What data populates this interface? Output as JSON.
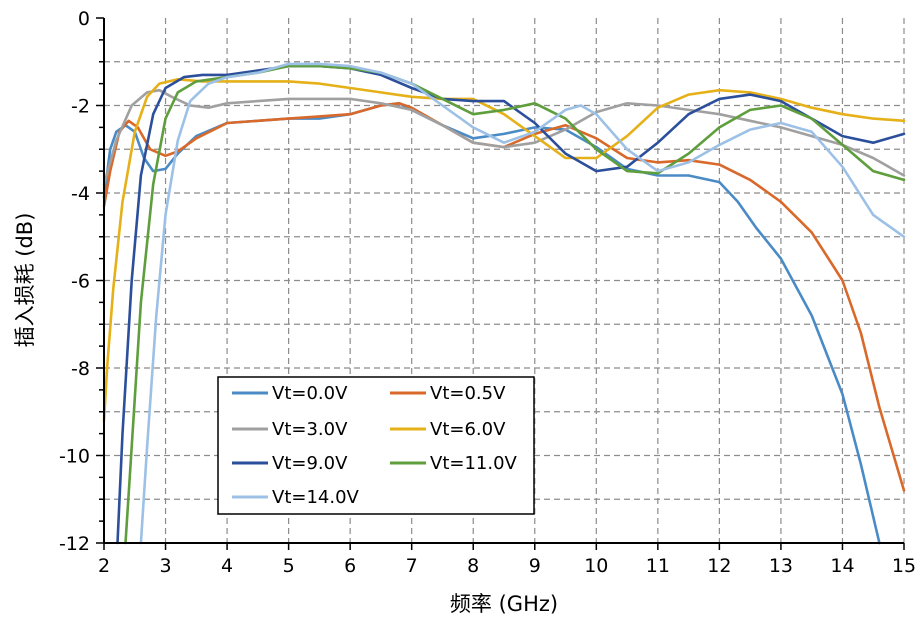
{
  "chart_data": {
    "type": "line",
    "title": "",
    "xlabel": "频率 (GHz)",
    "ylabel": "插入损耗 (dB)",
    "xlim": [
      2,
      15
    ],
    "ylim": [
      -12,
      0
    ],
    "xticks": [
      "2",
      "3",
      "4",
      "5",
      "6",
      "7",
      "8",
      "9",
      "10",
      "11",
      "12",
      "13",
      "14",
      "15"
    ],
    "yticks": [
      "0",
      "-2",
      "-4",
      "-6",
      "-8",
      "-10",
      "-12"
    ],
    "grid": true,
    "legend_position": "bottom-left",
    "series": [
      {
        "name": "Vt=0.0V",
        "color": "#4a8bc6",
        "points": [
          [
            2,
            -4.1
          ],
          [
            2.1,
            -3.0
          ],
          [
            2.2,
            -2.6
          ],
          [
            2.35,
            -2.45
          ],
          [
            2.5,
            -2.6
          ],
          [
            2.65,
            -3.2
          ],
          [
            2.8,
            -3.5
          ],
          [
            3,
            -3.45
          ],
          [
            3.2,
            -3.1
          ],
          [
            3.5,
            -2.7
          ],
          [
            4,
            -2.4
          ],
          [
            4.5,
            -2.35
          ],
          [
            5,
            -2.3
          ],
          [
            5.5,
            -2.3
          ],
          [
            6,
            -2.2
          ],
          [
            6.5,
            -2.0
          ],
          [
            6.8,
            -1.95
          ],
          [
            7,
            -2.1
          ],
          [
            7.5,
            -2.45
          ],
          [
            8,
            -2.75
          ],
          [
            8.5,
            -2.65
          ],
          [
            9,
            -2.5
          ],
          [
            9.5,
            -2.55
          ],
          [
            10,
            -2.95
          ],
          [
            10.5,
            -3.45
          ],
          [
            11,
            -3.6
          ],
          [
            11.5,
            -3.6
          ],
          [
            12,
            -3.75
          ],
          [
            12.3,
            -4.2
          ],
          [
            12.6,
            -4.8
          ],
          [
            13,
            -5.5
          ],
          [
            13.5,
            -6.8
          ],
          [
            14,
            -8.6
          ],
          [
            14.3,
            -10.2
          ],
          [
            14.6,
            -12
          ]
        ]
      },
      {
        "name": "Vt=0.5V",
        "color": "#d9692a",
        "points": [
          [
            2,
            -4.3
          ],
          [
            2.1,
            -3.5
          ],
          [
            2.25,
            -2.6
          ],
          [
            2.4,
            -2.35
          ],
          [
            2.55,
            -2.5
          ],
          [
            2.75,
            -3.0
          ],
          [
            3,
            -3.15
          ],
          [
            3.2,
            -3.05
          ],
          [
            3.5,
            -2.75
          ],
          [
            4,
            -2.4
          ],
          [
            4.5,
            -2.35
          ],
          [
            5,
            -2.3
          ],
          [
            5.5,
            -2.25
          ],
          [
            6,
            -2.2
          ],
          [
            6.5,
            -2.0
          ],
          [
            6.8,
            -1.95
          ],
          [
            7,
            -2.05
          ],
          [
            7.5,
            -2.45
          ],
          [
            8,
            -2.85
          ],
          [
            8.5,
            -2.95
          ],
          [
            9,
            -2.65
          ],
          [
            9.5,
            -2.45
          ],
          [
            10,
            -2.75
          ],
          [
            10.5,
            -3.2
          ],
          [
            11,
            -3.3
          ],
          [
            11.5,
            -3.25
          ],
          [
            12,
            -3.35
          ],
          [
            12.5,
            -3.7
          ],
          [
            13,
            -4.2
          ],
          [
            13.5,
            -4.9
          ],
          [
            14,
            -6.0
          ],
          [
            14.3,
            -7.2
          ],
          [
            14.6,
            -8.9
          ],
          [
            15,
            -10.8
          ]
        ]
      },
      {
        "name": "Vt=3.0V",
        "color": "#a0a0a0",
        "points": [
          [
            2,
            -3.8
          ],
          [
            2.2,
            -2.8
          ],
          [
            2.45,
            -2.0
          ],
          [
            2.7,
            -1.7
          ],
          [
            2.9,
            -1.65
          ],
          [
            3.1,
            -1.8
          ],
          [
            3.4,
            -2.0
          ],
          [
            3.7,
            -2.05
          ],
          [
            4,
            -1.95
          ],
          [
            4.5,
            -1.9
          ],
          [
            5,
            -1.85
          ],
          [
            5.5,
            -1.85
          ],
          [
            6,
            -1.85
          ],
          [
            6.5,
            -1.95
          ],
          [
            7,
            -2.1
          ],
          [
            7.5,
            -2.45
          ],
          [
            8,
            -2.85
          ],
          [
            8.5,
            -2.95
          ],
          [
            9,
            -2.85
          ],
          [
            9.5,
            -2.55
          ],
          [
            10,
            -2.15
          ],
          [
            10.5,
            -1.95
          ],
          [
            11,
            -2.0
          ],
          [
            11.5,
            -2.1
          ],
          [
            12,
            -2.2
          ],
          [
            12.5,
            -2.35
          ],
          [
            13,
            -2.5
          ],
          [
            13.5,
            -2.7
          ],
          [
            14,
            -2.9
          ],
          [
            14.5,
            -3.2
          ],
          [
            15,
            -3.6
          ]
        ]
      },
      {
        "name": "Vt=6.0V",
        "color": "#e6b019",
        "points": [
          [
            2,
            -9.2
          ],
          [
            2.05,
            -8.0
          ],
          [
            2.15,
            -6.2
          ],
          [
            2.3,
            -4.2
          ],
          [
            2.5,
            -2.6
          ],
          [
            2.7,
            -1.8
          ],
          [
            2.9,
            -1.5
          ],
          [
            3.2,
            -1.4
          ],
          [
            3.6,
            -1.45
          ],
          [
            4,
            -1.45
          ],
          [
            4.5,
            -1.45
          ],
          [
            5,
            -1.45
          ],
          [
            5.5,
            -1.5
          ],
          [
            6,
            -1.6
          ],
          [
            6.5,
            -1.7
          ],
          [
            7,
            -1.8
          ],
          [
            7.5,
            -1.85
          ],
          [
            8,
            -1.85
          ],
          [
            8.5,
            -2.2
          ],
          [
            9,
            -2.7
          ],
          [
            9.5,
            -3.2
          ],
          [
            10,
            -3.2
          ],
          [
            10.5,
            -2.7
          ],
          [
            11,
            -2.05
          ],
          [
            11.5,
            -1.75
          ],
          [
            12,
            -1.65
          ],
          [
            12.5,
            -1.7
          ],
          [
            13,
            -1.85
          ],
          [
            13.5,
            -2.05
          ],
          [
            14,
            -2.2
          ],
          [
            14.5,
            -2.3
          ],
          [
            15,
            -2.35
          ]
        ]
      },
      {
        "name": "Vt=9.0V",
        "color": "#2c4f9c",
        "points": [
          [
            2.22,
            -12
          ],
          [
            2.3,
            -9.5
          ],
          [
            2.45,
            -6.0
          ],
          [
            2.6,
            -3.6
          ],
          [
            2.8,
            -2.2
          ],
          [
            3.0,
            -1.6
          ],
          [
            3.3,
            -1.35
          ],
          [
            3.6,
            -1.3
          ],
          [
            4,
            -1.3
          ],
          [
            4.5,
            -1.2
          ],
          [
            5,
            -1.1
          ],
          [
            5.5,
            -1.1
          ],
          [
            6,
            -1.15
          ],
          [
            6.5,
            -1.3
          ],
          [
            7,
            -1.6
          ],
          [
            7.5,
            -1.85
          ],
          [
            8,
            -1.9
          ],
          [
            8.5,
            -1.9
          ],
          [
            9,
            -2.4
          ],
          [
            9.5,
            -3.1
          ],
          [
            10,
            -3.5
          ],
          [
            10.5,
            -3.4
          ],
          [
            11,
            -2.85
          ],
          [
            11.5,
            -2.2
          ],
          [
            12,
            -1.85
          ],
          [
            12.5,
            -1.75
          ],
          [
            13,
            -1.9
          ],
          [
            13.5,
            -2.3
          ],
          [
            14,
            -2.7
          ],
          [
            14.5,
            -2.85
          ],
          [
            15,
            -2.65
          ]
        ]
      },
      {
        "name": "Vt=11.0V",
        "color": "#5f9e3c",
        "points": [
          [
            2.35,
            -12
          ],
          [
            2.45,
            -9.8
          ],
          [
            2.6,
            -6.5
          ],
          [
            2.8,
            -3.8
          ],
          [
            3.0,
            -2.3
          ],
          [
            3.2,
            -1.7
          ],
          [
            3.5,
            -1.45
          ],
          [
            4,
            -1.35
          ],
          [
            4.5,
            -1.25
          ],
          [
            5,
            -1.1
          ],
          [
            5.5,
            -1.1
          ],
          [
            6,
            -1.15
          ],
          [
            6.5,
            -1.25
          ],
          [
            7,
            -1.5
          ],
          [
            7.5,
            -1.85
          ],
          [
            8,
            -2.2
          ],
          [
            8.5,
            -2.1
          ],
          [
            9,
            -1.95
          ],
          [
            9.5,
            -2.3
          ],
          [
            10,
            -3.0
          ],
          [
            10.5,
            -3.5
          ],
          [
            11,
            -3.55
          ],
          [
            11.5,
            -3.1
          ],
          [
            12,
            -2.5
          ],
          [
            12.5,
            -2.1
          ],
          [
            13,
            -2.0
          ],
          [
            13.5,
            -2.3
          ],
          [
            14,
            -2.9
          ],
          [
            14.5,
            -3.5
          ],
          [
            15,
            -3.7
          ]
        ]
      },
      {
        "name": "Vt=14.0V",
        "color": "#9dc1e6",
        "points": [
          [
            2.6,
            -12
          ],
          [
            2.7,
            -9.8
          ],
          [
            2.85,
            -6.8
          ],
          [
            3.0,
            -4.5
          ],
          [
            3.2,
            -2.8
          ],
          [
            3.4,
            -1.9
          ],
          [
            3.7,
            -1.5
          ],
          [
            4,
            -1.35
          ],
          [
            4.5,
            -1.25
          ],
          [
            5,
            -1.05
          ],
          [
            5.5,
            -1.05
          ],
          [
            6,
            -1.1
          ],
          [
            6.5,
            -1.25
          ],
          [
            7,
            -1.5
          ],
          [
            7.5,
            -2.0
          ],
          [
            8,
            -2.5
          ],
          [
            8.5,
            -2.85
          ],
          [
            9,
            -2.6
          ],
          [
            9.5,
            -2.1
          ],
          [
            9.75,
            -2.0
          ],
          [
            10,
            -2.2
          ],
          [
            10.5,
            -3.0
          ],
          [
            11,
            -3.5
          ],
          [
            11.5,
            -3.3
          ],
          [
            12,
            -2.9
          ],
          [
            12.5,
            -2.55
          ],
          [
            13,
            -2.4
          ],
          [
            13.5,
            -2.6
          ],
          [
            14,
            -3.4
          ],
          [
            14.5,
            -4.5
          ],
          [
            15,
            -5.0
          ]
        ]
      }
    ]
  }
}
